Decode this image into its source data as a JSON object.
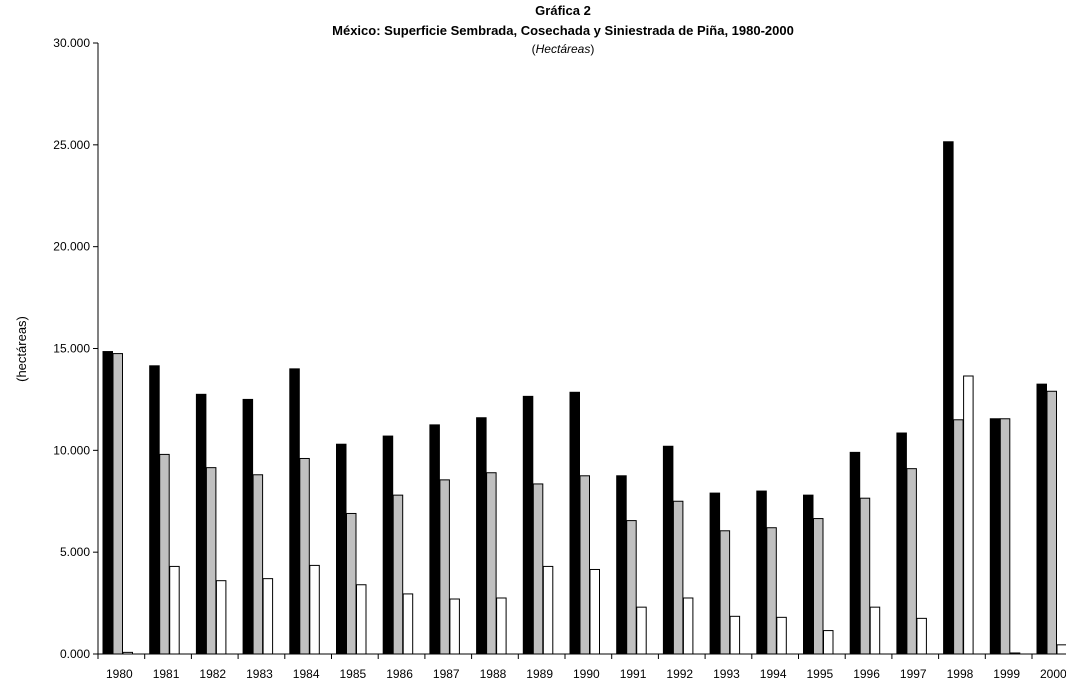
{
  "chart_data": {
    "type": "bar",
    "title": "Gráfica 2",
    "subtitle": "México: Superficie Sembrada, Cosechada y Siniestrada de Piña, 1980-2000",
    "unit_line": {
      "open": "(",
      "italic": "Hectáreas",
      "close": ")"
    },
    "xlabel": "",
    "ylabel": "(hectáreas)",
    "ylim": [
      0,
      30000
    ],
    "yticks": [
      0,
      5000,
      10000,
      15000,
      20000,
      25000,
      30000
    ],
    "ytick_labels": [
      "0.000",
      "5.000",
      "10.000",
      "15.000",
      "20.000",
      "25.000",
      "30.000"
    ],
    "categories": [
      "1980",
      "1981",
      "1982",
      "1983",
      "1984",
      "1985",
      "1986",
      "1987",
      "1988",
      "1989",
      "1990",
      "1991",
      "1992",
      "1993",
      "1994",
      "1995",
      "1996",
      "1997",
      "1998",
      "1999",
      "2000"
    ],
    "series": [
      {
        "color": "#000000",
        "values": [
          14850,
          14150,
          12750,
          12500,
          14000,
          10300,
          10700,
          11250,
          11600,
          12650,
          12850,
          8750,
          10200,
          7900,
          8000,
          7800,
          9900,
          10850,
          25150,
          11550,
          13250
        ]
      },
      {
        "color": "#c0c0c0",
        "values": [
          14750,
          9800,
          9150,
          8800,
          9600,
          6900,
          7800,
          8550,
          8900,
          8350,
          8750,
          6550,
          7500,
          6050,
          6200,
          6650,
          7650,
          9100,
          11500,
          11550,
          12900
        ]
      },
      {
        "color": "#ffffff",
        "values": [
          80,
          4300,
          3600,
          3700,
          4350,
          3400,
          2950,
          2700,
          2750,
          4300,
          4150,
          2300,
          2750,
          1850,
          1800,
          1150,
          2300,
          1750,
          13650,
          50,
          450
        ]
      }
    ],
    "grid": false,
    "legend": "none"
  }
}
